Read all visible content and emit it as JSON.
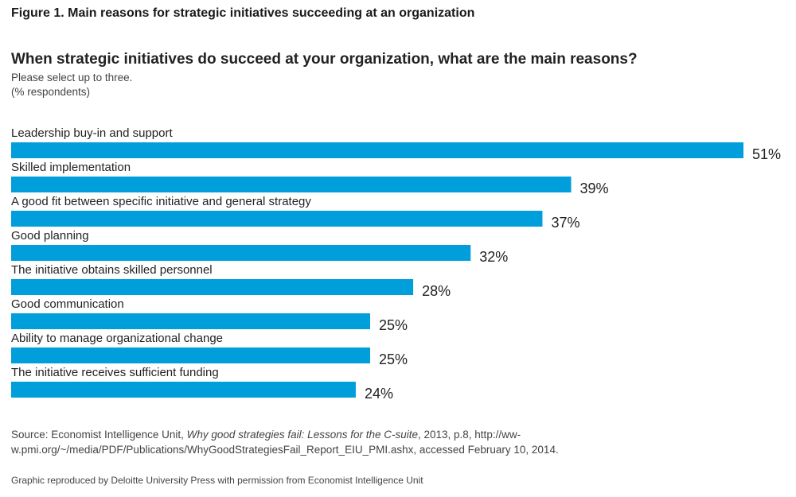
{
  "figure_title": "Figure 1. Main reasons for strategic initiatives succeeding at an organization",
  "question": "When strategic initiatives do succeed at your organization, what are the main reasons?",
  "instruction": "Please select up to three.",
  "unit_note": "(% respondents)",
  "bar_color": "#009fdb",
  "source": {
    "prefix": "Source: Economist Intelligence Unit, ",
    "title_italic": "Why good strategies fail: Lessons for the C-suite",
    "suffix": ", 2013, p.8, http://ww-w.pmi.org/~/media/PDF/Publications/WhyGoodStrategiesFail_Report_EIU_PMI.ashx, accessed February 10, 2014."
  },
  "credit": "Graphic reproduced by Deloitte University Press with permission from Economist Intelligence Unit",
  "chart_data": {
    "type": "bar",
    "orientation": "horizontal",
    "categories": [
      "Leadership buy-in and support",
      "Skilled implementation",
      "A good fit between specific initiative and general strategy",
      "Good planning",
      "The initiative obtains skilled personnel",
      "Good communication",
      "Ability to manage organizational change",
      "The initiative receives sufficient funding"
    ],
    "values": [
      51,
      39,
      37,
      32,
      28,
      25,
      25,
      24
    ],
    "value_labels": [
      "51%",
      "39%",
      "37%",
      "32%",
      "28%",
      "25%",
      "25%",
      "24%"
    ],
    "xlim": [
      0,
      51
    ],
    "grid": false,
    "legend": "none"
  }
}
